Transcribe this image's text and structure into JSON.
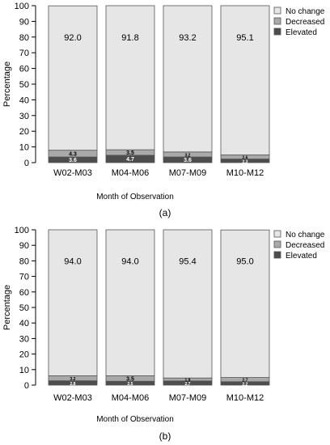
{
  "chart_data": [
    {
      "type": "bar",
      "stacked": true,
      "categories": [
        "W02-M03",
        "M04-M06",
        "M07-M09",
        "M10-M12"
      ],
      "series": [
        {
          "name": "Elevated",
          "values": [
            3.6,
            4.7,
            3.6,
            2.3
          ],
          "labels": [
            "3.6",
            "4.7",
            "3.6",
            "2.3"
          ]
        },
        {
          "name": "Decreased",
          "values": [
            4.3,
            3.5,
            3.2,
            2.6
          ],
          "labels": [
            "4.3",
            "3.5",
            "3.2",
            "2.6"
          ]
        },
        {
          "name": "No change",
          "values": [
            92.0,
            91.8,
            93.2,
            95.1
          ],
          "labels": [
            "92.0",
            "91.8",
            "93.2",
            "95.1"
          ]
        }
      ],
      "xlabel": "Month of Observation",
      "ylabel": "Percentage",
      "ylim": [
        0,
        100
      ],
      "yticks": [
        "0",
        "10",
        "20",
        "30",
        "40",
        "50",
        "60",
        "70",
        "80",
        "90",
        "100"
      ],
      "caption": "(a)",
      "legend_position": "top-right",
      "colors": {
        "No change": "#e6e6e6",
        "Decreased": "#a9a9a9",
        "Elevated": "#4d4d4d"
      }
    },
    {
      "type": "bar",
      "stacked": true,
      "categories": [
        "W02-M03",
        "M04-M06",
        "M07-M09",
        "M10-M12"
      ],
      "series": [
        {
          "name": "Elevated",
          "values": [
            2.8,
            2.5,
            2.7,
            2.2
          ],
          "labels": [
            "2.8",
            "2.5",
            "2.7",
            "2.2"
          ]
        },
        {
          "name": "Decreased",
          "values": [
            3.2,
            3.5,
            1.9,
            2.7
          ],
          "labels": [
            "3.2",
            "3.5",
            "1.9",
            "2.7"
          ]
        },
        {
          "name": "No change",
          "values": [
            94.0,
            94.0,
            95.4,
            95.0
          ],
          "labels": [
            "94.0",
            "94.0",
            "95.4",
            "95.0"
          ]
        }
      ],
      "xlabel": "Month of Observation",
      "ylabel": "Percentage",
      "ylim": [
        0,
        100
      ],
      "yticks": [
        "0",
        "10",
        "20",
        "30",
        "40",
        "50",
        "60",
        "70",
        "80",
        "90",
        "100"
      ],
      "caption": "(b)",
      "legend_position": "top-right",
      "colors": {
        "No change": "#e6e6e6",
        "Decreased": "#a9a9a9",
        "Elevated": "#4d4d4d"
      }
    }
  ]
}
